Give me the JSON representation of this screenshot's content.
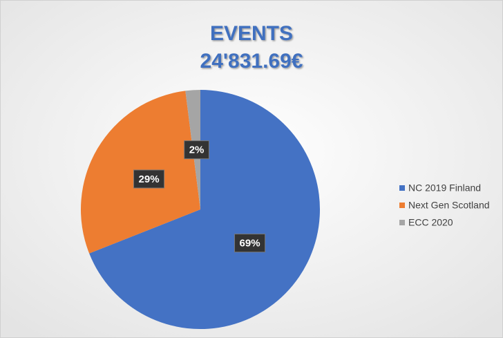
{
  "chart_data": {
    "type": "pie",
    "title": "EVENTS",
    "subtitle": "24'831.69€",
    "categories": [
      "NC 2019 Finland",
      "Next Gen Scotland",
      "ECC 2020"
    ],
    "values": [
      69,
      29,
      2
    ],
    "value_labels": [
      "69%",
      "29%",
      "2%"
    ],
    "colors": [
      "#4472c4",
      "#ed7d31",
      "#a5a5a5"
    ],
    "legend": "right"
  }
}
